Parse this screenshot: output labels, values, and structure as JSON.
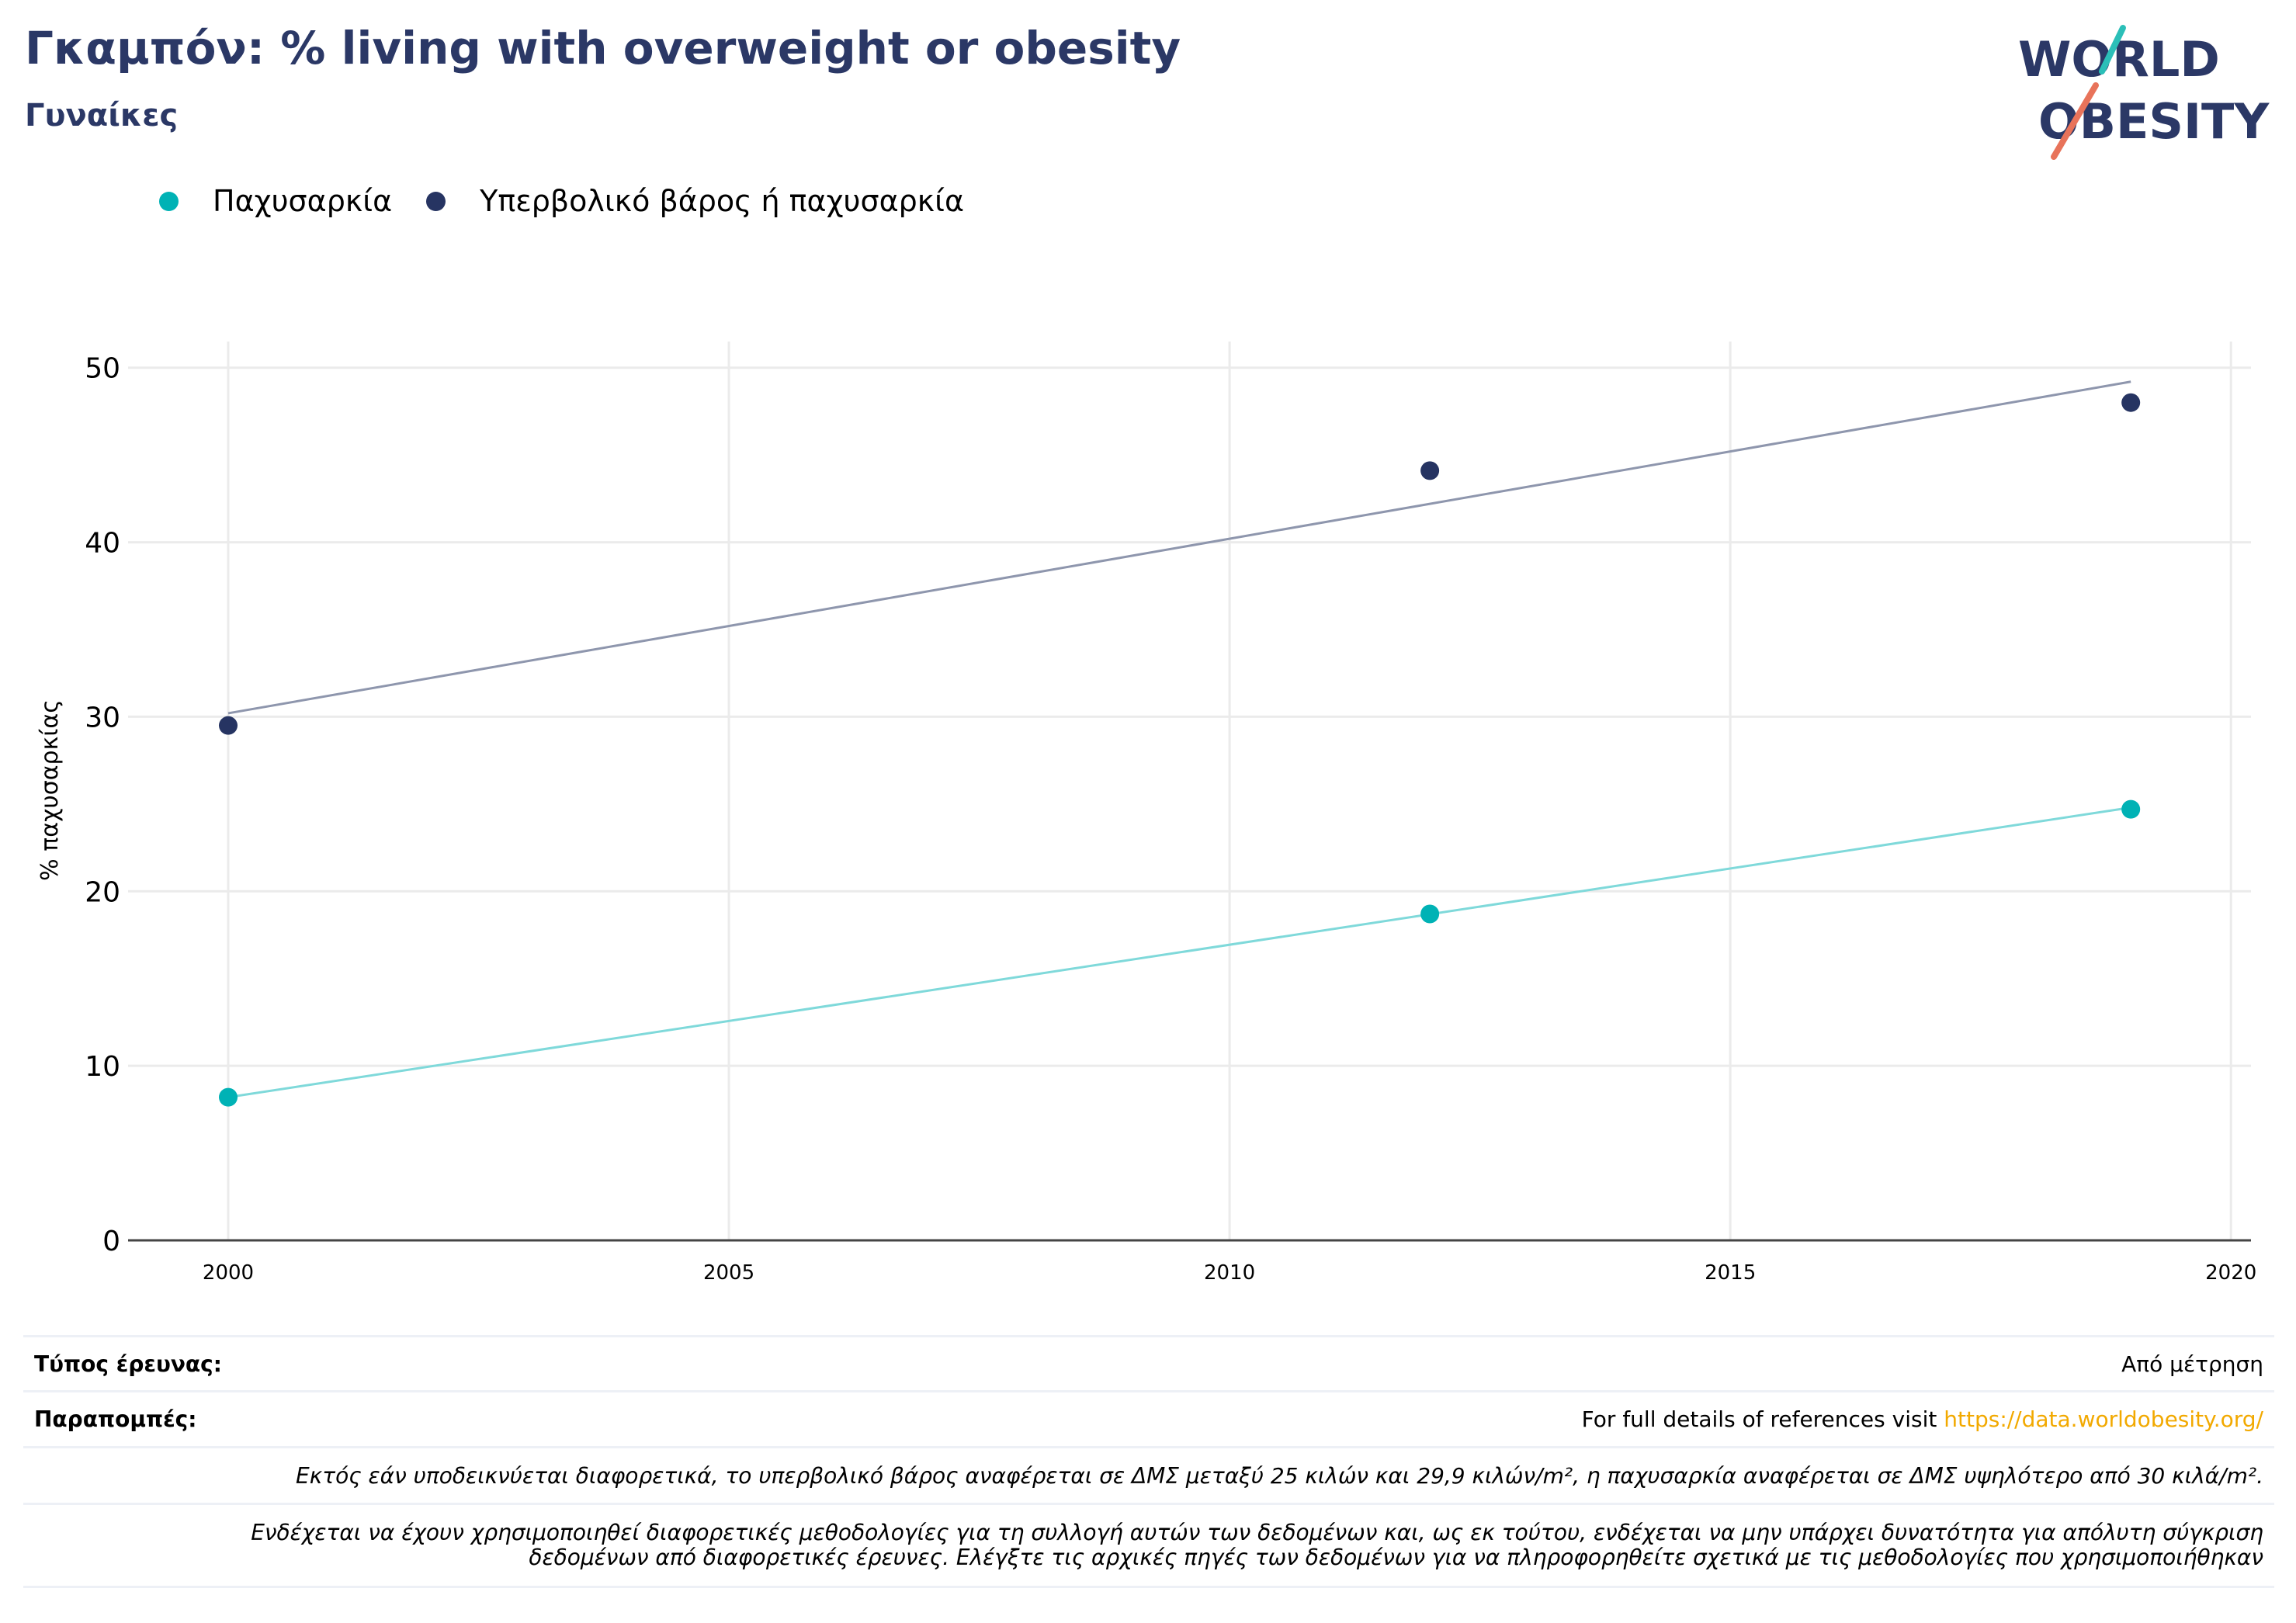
{
  "header": {
    "title": "Γκαμπόν: % living with overweight or obesity",
    "subtitle": "Γυναίκες"
  },
  "logo": {
    "line1": "WORLD",
    "line2": "OBESITY",
    "colors": {
      "text": "#2b3866",
      "slash_top": "#2bbfb8",
      "slash_bottom": "#e8735a"
    }
  },
  "colors": {
    "obesity": "#00b2b5",
    "overweight_or_obesity": "#263462",
    "obesity_trend": "#7fd9da",
    "overweight_trend": "#8e96ad",
    "link": "#f2a900"
  },
  "chart_data": {
    "type": "scatter",
    "ylabel": "% παχυσαρκίας",
    "xlabel": "",
    "xlim": [
      1999,
      2020.2
    ],
    "ylim": [
      0,
      51.5
    ],
    "xticks": [
      2000,
      2005,
      2010,
      2015,
      2020
    ],
    "yticks": [
      0,
      10,
      20,
      30,
      40,
      50
    ],
    "grid": true,
    "legend_position": "top-left",
    "series": [
      {
        "name": "Παχυσαρκία",
        "color": "#00b2b5",
        "x": [
          2000,
          2012,
          2019
        ],
        "y": [
          8.2,
          18.7,
          24.7
        ],
        "trend": {
          "x": [
            2000,
            2019
          ],
          "y": [
            8.2,
            24.8
          ]
        }
      },
      {
        "name": "Υπερβολικό βάρος ή παχυσαρκία",
        "color": "#263462",
        "x": [
          2000,
          2012,
          2019
        ],
        "y": [
          29.5,
          44.1,
          48.0
        ],
        "trend": {
          "x": [
            2000,
            2019
          ],
          "y": [
            30.2,
            49.2
          ]
        }
      }
    ]
  },
  "footer": {
    "survey_type_label": "Τύπος έρευνας:",
    "survey_type_value": "Από μέτρηση",
    "references_label": "Παραπομπές:",
    "references_text": "For full details of references visit ",
    "references_link": "https://data.worldobesity.org/",
    "note1": "Εκτός εάν υποδεικνύεται διαφορετικά, το υπερβολικό βάρος αναφέρεται σε ΔΜΣ μεταξύ 25 κιλών και 29,9 κιλών/m², η παχυσαρκία αναφέρεται σε ΔΜΣ υψηλότερο από 30 κιλά/m².",
    "note2_line1": "Ενδέχεται να έχουν χρησιμοποιηθεί διαφορετικές μεθοδολογίες για τη συλλογή αυτών των δεδομένων και, ως εκ τούτου, ενδέχεται να μην υπάρχει δυνατότητα για απόλυτη σύγκριση",
    "note2_line2": "δεδομένων από διαφορετικές έρευνες. Ελέγξτε τις αρχικές πηγές των δεδομένων για να πληροφορηθείτε σχετικά με τις μεθοδολογίες που χρησιμοποιήθηκαν"
  }
}
